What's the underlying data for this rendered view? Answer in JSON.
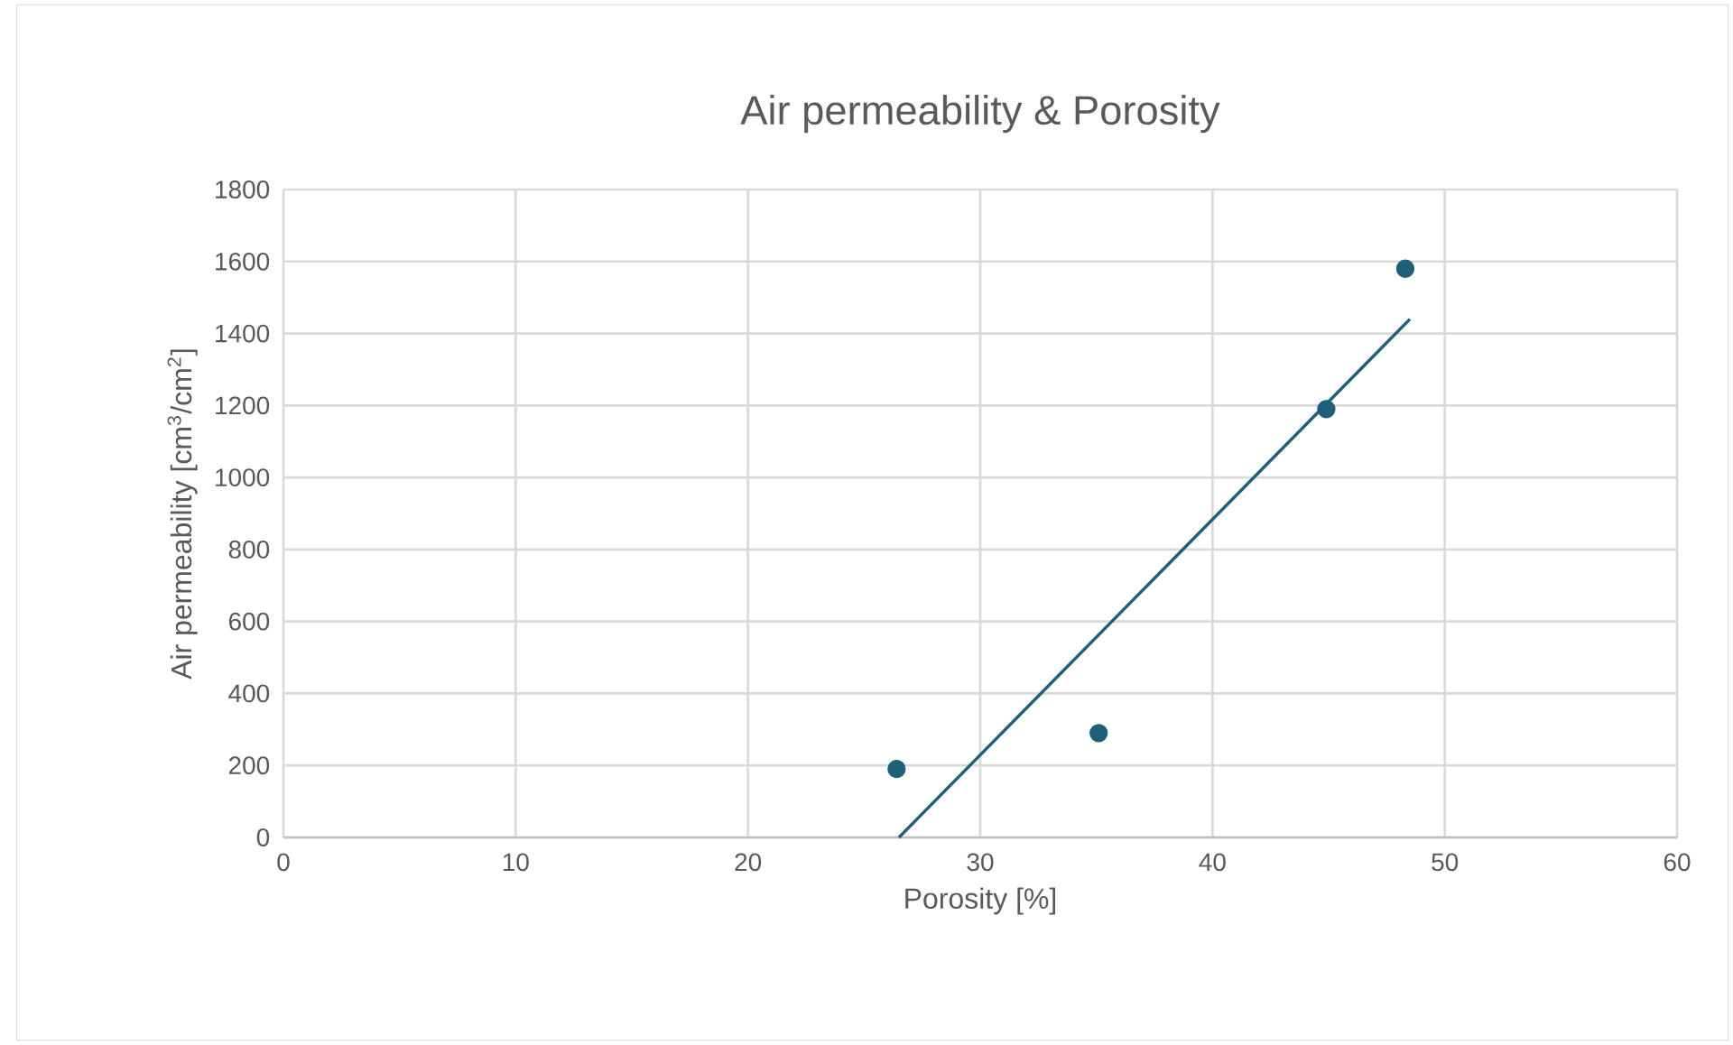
{
  "chart_data": {
    "type": "scatter",
    "title": "Air permeability & Porosity",
    "xlabel": "Porosity [%]",
    "ylabel": "Air permeability [cm$^{3}$/cm$^{2}$]",
    "xlim": [
      0,
      60
    ],
    "xticks": [
      0,
      10,
      20,
      30,
      40,
      50,
      60
    ],
    "ylim": [
      0,
      1800
    ],
    "yticks": [
      0,
      200,
      400,
      600,
      800,
      1000,
      1200,
      1400,
      1600,
      1800
    ],
    "grid": true,
    "series": [
      {
        "marker": "circle",
        "color": "#1f5f7a",
        "x": [
          26.4,
          35.1,
          44.9,
          48.3
        ],
        "values": [
          190,
          290,
          1190,
          1580
        ]
      },
      {
        "type": "line",
        "color": "#1f5f7a",
        "x": [
          26.5,
          48.5
        ],
        "values": [
          0,
          1440
        ]
      }
    ]
  }
}
